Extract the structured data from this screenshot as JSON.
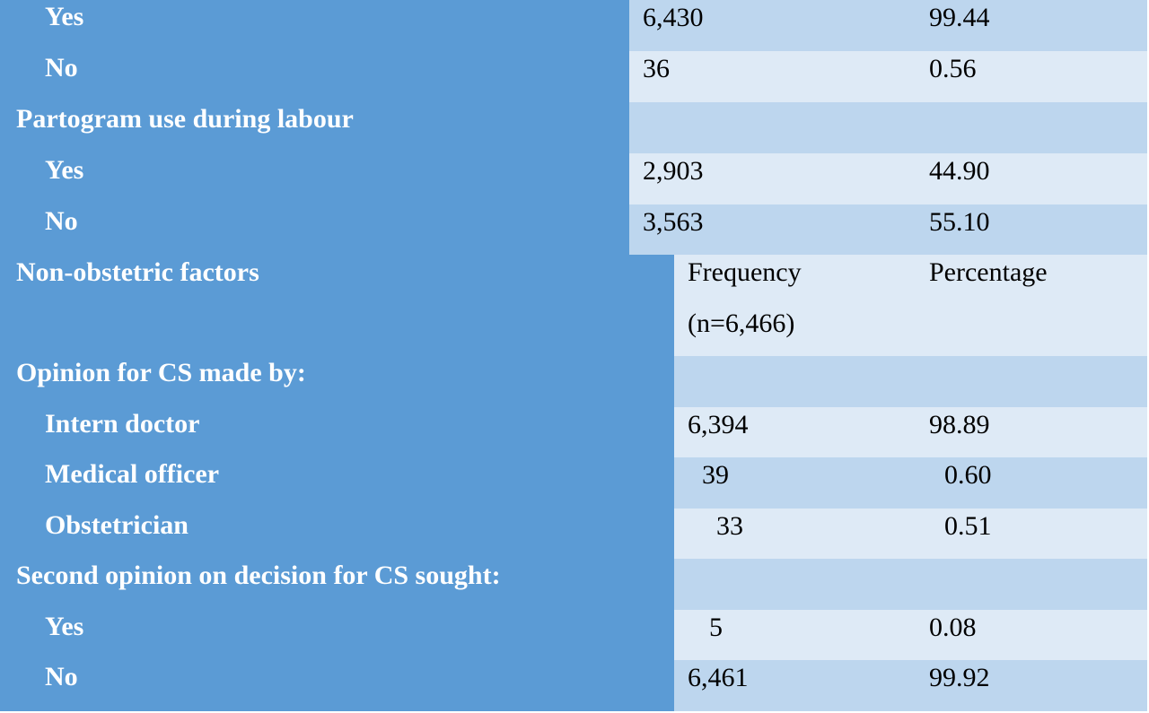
{
  "rows": [
    {
      "label": "Yes",
      "frequency": "6,430",
      "percentage": "99.44"
    },
    {
      "label": "No",
      "frequency": "36",
      "percentage": "0.56"
    },
    {
      "label": "Partogram use during labour",
      "frequency": "",
      "percentage": ""
    },
    {
      "label": "Yes",
      "frequency": "2,903",
      "percentage": "44.90"
    },
    {
      "label": "No",
      "frequency": "3,563",
      "percentage": "55.10"
    },
    {
      "label": "Non-obstetric factors",
      "frequency_line1": "Frequency",
      "frequency_line2": "(n=6,466)",
      "percentage": "Percentage"
    },
    {
      "label": "Opinion for CS made by:",
      "frequency": "",
      "percentage": ""
    },
    {
      "label": "Intern doctor",
      "frequency": "6,394",
      "percentage": "98.89"
    },
    {
      "label": "Medical officer",
      "frequency": "39",
      "percentage": "0.60"
    },
    {
      "label": "Obstetrician",
      "frequency": "33",
      "percentage": "0.51"
    },
    {
      "label": "Second opinion on decision for CS sought:",
      "frequency": "",
      "percentage": ""
    },
    {
      "label": "Yes",
      "frequency": "5",
      "percentage": "0.08"
    },
    {
      "label": "No",
      "frequency": "6,461",
      "percentage": "99.92"
    }
  ]
}
